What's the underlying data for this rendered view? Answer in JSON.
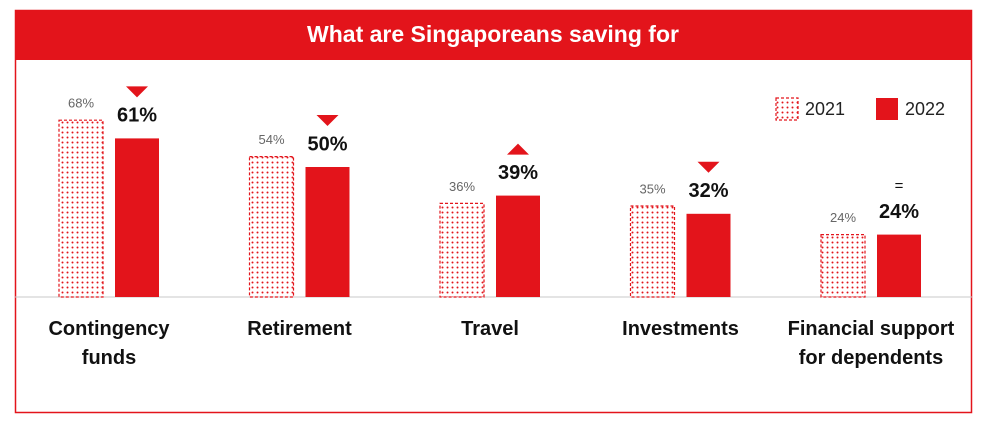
{
  "chart_data": {
    "type": "bar",
    "title": "What are Singaporeans saving for",
    "categories": [
      "Contingency funds",
      "Retirement",
      "Travel",
      "Investments",
      "Financial support for dependents"
    ],
    "series": [
      {
        "name": "2021",
        "color": "#e3141b",
        "pattern": "dotted",
        "values": [
          68,
          54,
          36,
          35,
          24
        ],
        "value_labels": [
          "68%",
          "54%",
          "36%",
          "35%",
          "24%"
        ]
      },
      {
        "name": "2022",
        "color": "#e3141b",
        "pattern": "solid",
        "values": [
          61,
          50,
          39,
          32,
          24
        ],
        "value_labels": [
          "61%",
          "50%",
          "39%",
          "32%",
          "24%"
        ]
      }
    ],
    "change_labels": [
      null,
      null,
      null,
      null,
      "="
    ],
    "legend": "top-right"
  }
}
